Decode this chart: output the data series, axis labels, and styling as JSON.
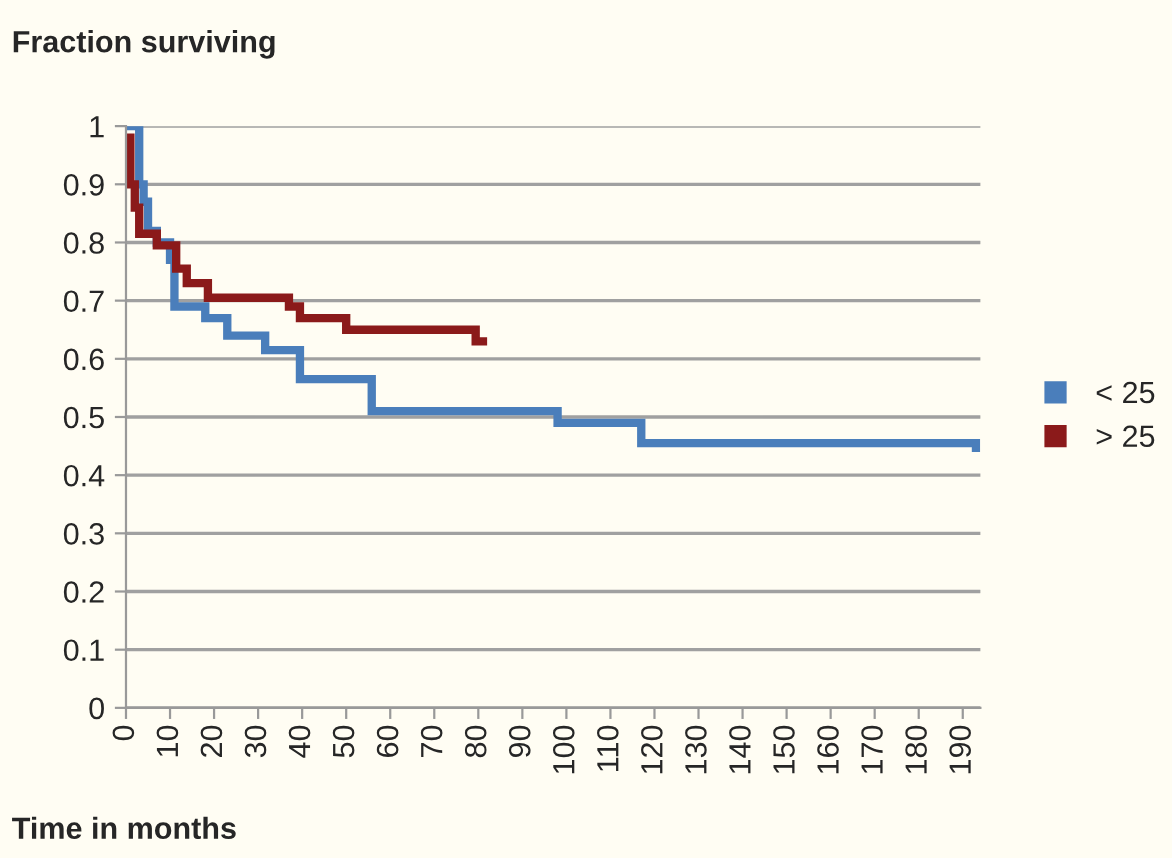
{
  "chart_data": {
    "type": "step",
    "title": "Fraction surviving",
    "xlabel": "Time in months",
    "series": [
      {
        "name": "< 25",
        "color": "#4a7ebb",
        "x": [
          0,
          3,
          4,
          5,
          7,
          10,
          11,
          18,
          23,
          31.6,
          39.5,
          55.8,
          98,
          117,
          193
        ],
        "values": [
          1,
          0.9,
          0.87,
          0.82,
          0.8,
          0.77,
          0.69,
          0.67,
          0.64,
          0.615,
          0.565,
          0.51,
          0.49,
          0.455,
          0.44
        ]
      },
      {
        "name": "> 25",
        "color": "#8b1a1a",
        "x": [
          0,
          1,
          2,
          3,
          7,
          11.4,
          13.8,
          18.6,
          37,
          39.5,
          50,
          79.4,
          82
        ],
        "values": [
          0.98,
          0.9,
          0.86,
          0.815,
          0.795,
          0.755,
          0.73,
          0.705,
          0.69,
          0.67,
          0.65,
          0.63,
          0.63
        ]
      }
    ],
    "xlim": [
      0,
      194
    ],
    "xticks": [
      0,
      10,
      20,
      30,
      40,
      50,
      60,
      70,
      80,
      90,
      100,
      110,
      120,
      130,
      140,
      150,
      160,
      170,
      180,
      190
    ],
    "ylim": [
      0,
      1
    ],
    "yticks": [
      0,
      0.1,
      0.2,
      0.3,
      0.4,
      0.5,
      0.6,
      0.7,
      0.8,
      0.9,
      1
    ],
    "grid": "y",
    "legend": "right",
    "line_style": "solid",
    "marker": "none"
  }
}
